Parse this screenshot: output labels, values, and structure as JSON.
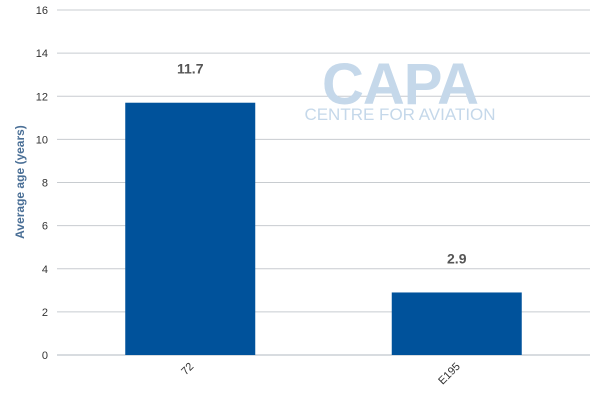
{
  "chart_data": {
    "type": "bar",
    "categories": [
      "72",
      "E195"
    ],
    "values": [
      11.7,
      2.9
    ],
    "data_labels": [
      "11.7",
      "2.9"
    ],
    "ylabel": "Average age (years)",
    "xlabel": "",
    "ylim": [
      0,
      16
    ],
    "yticks": [
      0,
      2,
      4,
      6,
      8,
      10,
      12,
      14,
      16
    ],
    "grid": true,
    "bar_color": "#00529b",
    "legend": "none"
  },
  "watermark": {
    "brand": "CAPA",
    "tagline": "CENTRE FOR AVIATION"
  }
}
